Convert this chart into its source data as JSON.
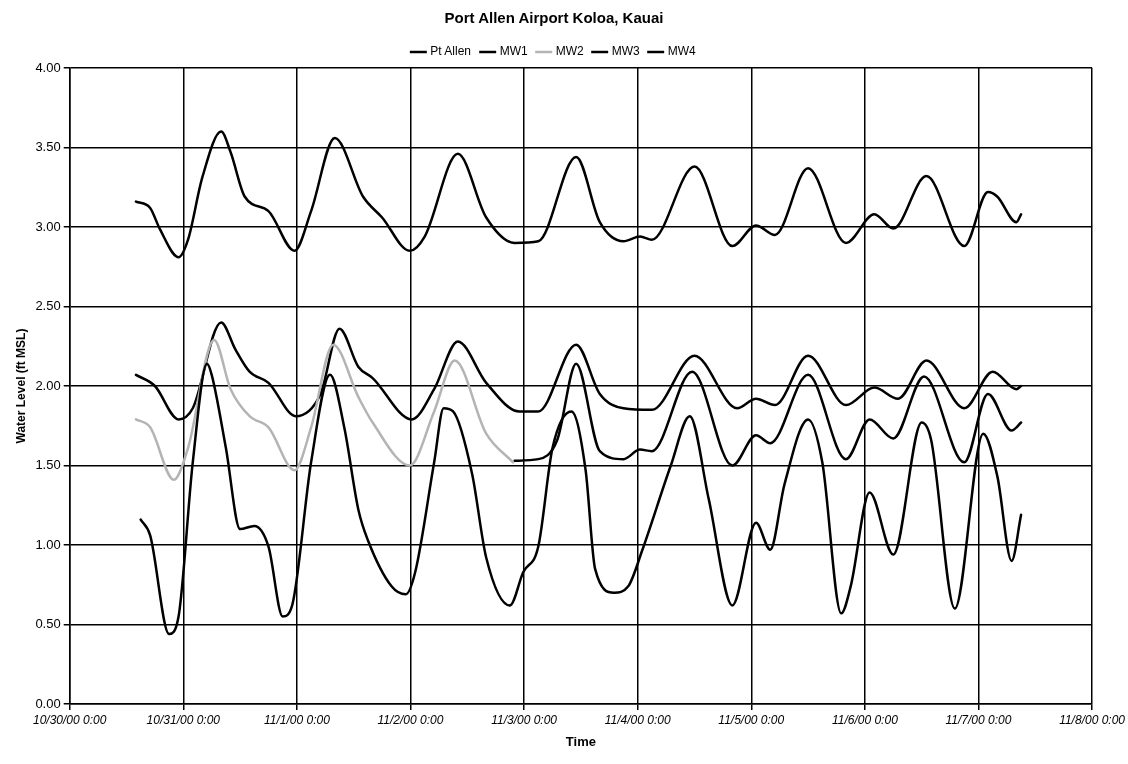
{
  "chart_data": {
    "type": "line",
    "title": "Port Allen Airport Koloa, Kauai",
    "xlabel": "Time",
    "ylabel": "Water Level (ft MSL)",
    "xlim": [
      "2000-10-30T00:00",
      "2000-11-08T00:00"
    ],
    "xticks": [
      {
        "value": "2000-10-30T00:00",
        "label": "10/30/00 0:00"
      },
      {
        "value": "2000-10-31T00:00",
        "label": "10/31/00 0:00"
      },
      {
        "value": "2000-11-01T00:00",
        "label": "11/1/00 0:00"
      },
      {
        "value": "2000-11-02T00:00",
        "label": "11/2/00 0:00"
      },
      {
        "value": "2000-11-03T00:00",
        "label": "11/3/00 0:00"
      },
      {
        "value": "2000-11-04T00:00",
        "label": "11/4/00 0:00"
      },
      {
        "value": "2000-11-05T00:00",
        "label": "11/5/00 0:00"
      },
      {
        "value": "2000-11-06T00:00",
        "label": "11/6/00 0:00"
      },
      {
        "value": "2000-11-07T00:00",
        "label": "11/7/00 0:00"
      },
      {
        "value": "2000-11-08T00:00",
        "label": "11/8/00 0:00"
      }
    ],
    "ylim": [
      0,
      4
    ],
    "yticks": [
      {
        "value": 0,
        "label": "0.00"
      },
      {
        "value": 0.5,
        "label": "0.50"
      },
      {
        "value": 1,
        "label": "1.00"
      },
      {
        "value": 1.5,
        "label": "1.50"
      },
      {
        "value": 2,
        "label": "2.00"
      },
      {
        "value": 2.5,
        "label": "2.50"
      },
      {
        "value": 3,
        "label": "3.00"
      },
      {
        "value": 3.5,
        "label": "3.50"
      },
      {
        "value": 4,
        "label": "4.00"
      }
    ],
    "grid": true,
    "legend": "top",
    "marker": "none",
    "line_style": "solid",
    "series": [
      {
        "name": "Pt Allen",
        "color": "#000000",
        "x": [
          "2000-10-30T15:00",
          "2000-10-30T17:00",
          "2000-10-30T21:00",
          "2000-10-30T23:00",
          "2000-10-31T02:00",
          "2000-10-31T05:00",
          "2000-10-31T06:00",
          "2000-10-31T09:00",
          "2000-10-31T12:00",
          "2000-10-31T15:00",
          "2000-10-31T18:00",
          "2000-10-31T21:00",
          "2000-10-31T23:00",
          "2000-11-01T03:00",
          "2000-11-01T07:00",
          "2000-11-01T10:00",
          "2000-11-01T13:00",
          "2000-11-01T15:00",
          "2000-11-01T20:00",
          "2000-11-01T23:00",
          "2000-11-02T01:00",
          "2000-11-02T05:00",
          "2000-11-02T07:00",
          "2000-11-02T09:00",
          "2000-11-02T13:00",
          "2000-11-02T16:00",
          "2000-11-02T21:00",
          "2000-11-02T23:50",
          "2000-11-03T03:00",
          "2000-11-03T06:00",
          "2000-11-03T10:00",
          "2000-11-03T13:00",
          "2000-11-03T15:00",
          "2000-11-03T19:00",
          "2000-11-03T22:00",
          "2000-11-04T01:00",
          "2000-11-04T07:00",
          "2000-11-04T11:00",
          "2000-11-04T15:00",
          "2000-11-04T20:00",
          "2000-11-05T01:00",
          "2000-11-05T04:00",
          "2000-11-05T07:00",
          "2000-11-05T12:00",
          "2000-11-05T15:00",
          "2000-11-05T19:00",
          "2000-11-05T21:00",
          "2000-11-06T01:00",
          "2000-11-06T06:00",
          "2000-11-06T12:00",
          "2000-11-06T14:00",
          "2000-11-06T19:00",
          "2000-11-07T01:00",
          "2000-11-07T04:00",
          "2000-11-07T07:00",
          "2000-11-07T09:00"
        ],
        "values": [
          1.16,
          1.06,
          0.44,
          0.55,
          1.52,
          2.14,
          2.07,
          1.61,
          1.1,
          1.12,
          0.99,
          0.55,
          0.62,
          1.52,
          2.07,
          1.74,
          1.22,
          1.03,
          0.74,
          0.69,
          0.83,
          1.52,
          1.86,
          1.84,
          1.45,
          0.92,
          0.62,
          0.83,
          0.99,
          1.61,
          1.84,
          1.47,
          0.85,
          0.7,
          0.74,
          0.97,
          1.5,
          1.81,
          1.29,
          0.62,
          1.14,
          0.97,
          1.38,
          1.79,
          1.52,
          0.57,
          0.74,
          1.33,
          0.94,
          1.77,
          1.66,
          0.6,
          1.7,
          1.43,
          0.9,
          1.19
        ]
      },
      {
        "name": "MW1",
        "color": "#000000",
        "x": [
          "2000-10-30T14:00",
          "2000-10-30T17:00",
          "2000-10-30T19:00",
          "2000-10-30T23:00",
          "2000-10-31T01:00",
          "2000-10-31T04:00",
          "2000-10-31T08:00",
          "2000-10-31T10:00",
          "2000-10-31T13:00",
          "2000-10-31T18:00",
          "2000-10-31T23:30",
          "2000-11-01T03:00",
          "2000-11-01T08:00",
          "2000-11-01T14:00",
          "2000-11-01T18:00",
          "2000-11-01T23:50",
          "2000-11-02T03:00",
          "2000-11-02T10:00",
          "2000-11-02T16:00",
          "2000-11-02T22:00",
          "2000-11-03T03:00",
          "2000-11-03T11:00",
          "2000-11-03T16:00",
          "2000-11-03T21:00",
          "2000-11-04T00:30",
          "2000-11-04T03:00",
          "2000-11-04T12:00",
          "2000-11-04T20:00",
          "2000-11-05T01:00",
          "2000-11-05T05:00",
          "2000-11-05T12:00",
          "2000-11-05T20:00",
          "2000-11-06T02:00",
          "2000-11-06T06:00",
          "2000-11-06T13:00",
          "2000-11-06T21:00",
          "2000-11-07T02:00",
          "2000-11-07T04:00",
          "2000-11-07T08:00",
          "2000-11-07T09:00"
        ],
        "values": [
          3.16,
          3.12,
          2.99,
          2.81,
          2.92,
          3.31,
          3.6,
          3.47,
          3.19,
          3.1,
          2.85,
          3.1,
          3.56,
          3.19,
          3.06,
          2.85,
          2.94,
          3.46,
          3.06,
          2.9,
          2.91,
          3.44,
          3.03,
          2.91,
          2.94,
          2.92,
          3.38,
          2.88,
          3.01,
          2.95,
          3.37,
          2.9,
          3.08,
          2.99,
          3.32,
          2.88,
          3.22,
          3.19,
          3.03,
          3.08
        ]
      },
      {
        "name": "MW2",
        "color": "#b4b4b4",
        "x": [
          "2000-10-30T14:00",
          "2000-10-30T17:00",
          "2000-10-30T22:00",
          "2000-10-31T01:00",
          "2000-10-31T06:30",
          "2000-10-31T10:00",
          "2000-10-31T14:00",
          "2000-10-31T18:00",
          "2000-10-31T23:30",
          "2000-11-01T03:00",
          "2000-11-01T07:40",
          "2000-11-01T13:00",
          "2000-11-01T16:00",
          "2000-11-01T23:50",
          "2000-11-02T05:00",
          "2000-11-02T09:20",
          "2000-11-02T16:00",
          "2000-11-02T21:40"
        ],
        "values": [
          1.79,
          1.74,
          1.41,
          1.61,
          2.29,
          1.98,
          1.81,
          1.74,
          1.47,
          1.74,
          2.26,
          1.93,
          1.77,
          1.5,
          1.84,
          2.16,
          1.7,
          1.52
        ]
      },
      {
        "name": "MW3",
        "color": "#000000",
        "x": [
          "2000-10-30T14:00",
          "2000-10-30T18:00",
          "2000-10-30T23:00",
          "2000-10-31T02:00",
          "2000-10-31T08:00",
          "2000-10-31T11:00",
          "2000-10-31T14:00",
          "2000-10-31T18:00",
          "2000-10-31T23:45",
          "2000-11-01T05:00",
          "2000-11-01T09:00",
          "2000-11-01T13:00",
          "2000-11-01T16:00",
          "2000-11-02T00:15",
          "2000-11-02T05:00",
          "2000-11-02T10:00",
          "2000-11-02T16:00",
          "2000-11-02T23:00",
          "2000-11-03T03:00",
          "2000-11-03T11:00",
          "2000-11-03T16:00",
          "2000-11-03T21:00",
          "2000-11-04T03:00",
          "2000-11-04T12:00",
          "2000-11-04T21:00",
          "2000-11-05T01:00",
          "2000-11-05T05:00",
          "2000-11-05T12:00",
          "2000-11-05T20:00",
          "2000-11-06T02:00",
          "2000-11-06T07:00",
          "2000-11-06T13:00",
          "2000-11-06T21:00",
          "2000-11-07T03:00",
          "2000-11-07T08:00",
          "2000-11-07T09:00"
        ],
        "values": [
          2.07,
          2.0,
          1.79,
          1.86,
          2.4,
          2.23,
          2.09,
          2.02,
          1.81,
          1.95,
          2.36,
          2.12,
          2.05,
          1.79,
          1.98,
          2.28,
          2.02,
          1.84,
          1.84,
          2.26,
          1.95,
          1.86,
          1.85,
          2.19,
          1.86,
          1.92,
          1.88,
          2.19,
          1.88,
          1.99,
          1.92,
          2.16,
          1.86,
          2.09,
          1.98,
          2.0
        ]
      },
      {
        "name": "MW4",
        "color": "#000000",
        "x": [
          "2000-11-02T22:00",
          "2000-11-03T03:00",
          "2000-11-03T07:00",
          "2000-11-03T11:00",
          "2000-11-03T16:00",
          "2000-11-03T21:00",
          "2000-11-04T00:30",
          "2000-11-04T03:00",
          "2000-11-04T11:30",
          "2000-11-04T20:00",
          "2000-11-05T01:00",
          "2000-11-05T04:00",
          "2000-11-05T12:00",
          "2000-11-05T20:00",
          "2000-11-06T01:00",
          "2000-11-06T06:00",
          "2000-11-06T12:30",
          "2000-11-06T21:00",
          "2000-11-07T02:00",
          "2000-11-07T07:00",
          "2000-11-07T09:00"
        ],
        "values": [
          1.53,
          1.54,
          1.66,
          2.14,
          1.59,
          1.54,
          1.6,
          1.59,
          2.09,
          1.5,
          1.69,
          1.64,
          2.07,
          1.54,
          1.79,
          1.67,
          2.06,
          1.52,
          1.95,
          1.72,
          1.77
        ]
      }
    ]
  }
}
